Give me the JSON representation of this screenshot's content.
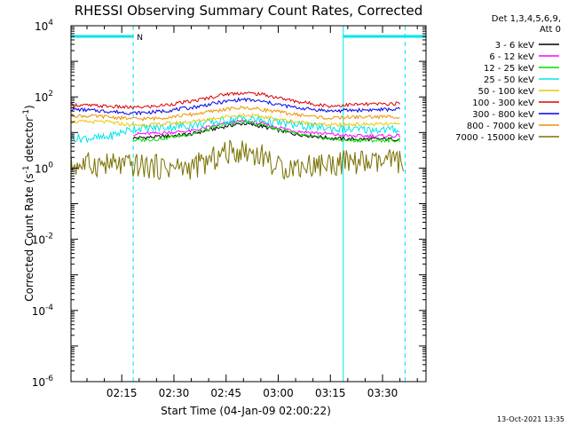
{
  "chart_data": {
    "type": "line",
    "title": "RHESSI Observing Summary Count Rates, Corrected",
    "xlabel": "Start Time (04-Jan-09 02:00:22)",
    "ylabel": "Corrected Count Rate (s⁻¹ detector⁻¹)",
    "ylabel_parts": {
      "main": "Corrected Count Rate (s",
      "exp1": "-1",
      "mid": " detector",
      "exp2": "-1",
      "end": ")"
    },
    "y_scale": "log",
    "ylim": [
      1e-06,
      10000.0
    ],
    "y_ticks": [
      {
        "value": 1e-06,
        "base": "10",
        "exp": "-6"
      },
      {
        "value": 0.0001,
        "base": "10",
        "exp": "-4"
      },
      {
        "value": 0.01,
        "base": "10",
        "exp": "-2"
      },
      {
        "value": 1,
        "base": "10",
        "exp": "0"
      },
      {
        "value": 100,
        "base": "10",
        "exp": "2"
      },
      {
        "value": 10000,
        "base": "10",
        "exp": "4"
      }
    ],
    "x_unit": "minutes after 02:00",
    "xlim": [
      0.4,
      102.5
    ],
    "x_ticks": [
      {
        "label": "02:15",
        "value": 15
      },
      {
        "label": "02:30",
        "value": 30
      },
      {
        "label": "02:45",
        "value": 45
      },
      {
        "label": "03:00",
        "value": 60
      },
      {
        "label": "03:15",
        "value": 75
      },
      {
        "label": "03:30",
        "value": 90
      }
    ],
    "legend": {
      "header": [
        "Det 1,3,4,5,6,9,",
        "Att 0"
      ],
      "position": "right",
      "entries": [
        {
          "label": "3 - 6 keV",
          "color": "#000000"
        },
        {
          "label": "6 - 12 keV",
          "color": "#ff00ff"
        },
        {
          "label": "12 - 25 keV",
          "color": "#00dd00"
        },
        {
          "label": "25 - 50 keV",
          "color": "#00e5ee"
        },
        {
          "label": "50 - 100 keV",
          "color": "#e8c800"
        },
        {
          "label": "100 - 300 keV",
          "color": "#dd0000"
        },
        {
          "label": "300 - 800 keV",
          "color": "#0000ee"
        },
        {
          "label": "800 - 7000 keV",
          "color": "#f09000"
        },
        {
          "label": "7000 - 15000 keV",
          "color": "#7a7000"
        }
      ]
    },
    "night_intervals": [
      [
        0.4,
        18.3
      ],
      [
        78.7,
        102.5
      ]
    ],
    "saa_flag": {
      "label": "N",
      "x": 18.6
    },
    "dashed_markers_x": [
      18.3,
      96.5
    ],
    "solid_markers_x": [
      78.7
    ],
    "series": [
      {
        "name": "3 - 6 keV",
        "color": "#000000",
        "x": [
          18.3,
          25,
          35,
          45,
          50,
          55,
          65,
          75,
          80,
          95
        ],
        "y": [
          7,
          7.5,
          9,
          15,
          18,
          15,
          9,
          7,
          6.5,
          6.5
        ]
      },
      {
        "name": "6 - 12 keV",
        "color": "#ff00ff",
        "x": [
          18.3,
          25,
          35,
          45,
          50,
          55,
          65,
          75,
          80,
          95
        ],
        "y": [
          9,
          9.5,
          11,
          18,
          21,
          18,
          11,
          9,
          8,
          8
        ]
      },
      {
        "name": "12 - 25 keV",
        "color": "#00dd00",
        "x": [
          18.3,
          25,
          35,
          45,
          50,
          55,
          65,
          75,
          80,
          95
        ],
        "y": [
          6,
          6.5,
          9,
          17,
          20,
          17,
          9,
          6.5,
          6,
          6
        ]
      },
      {
        "name": "25 - 50 keV",
        "color": "#00e5ee",
        "x": [
          0.4,
          10,
          18.3,
          25,
          35,
          45,
          50,
          55,
          65,
          75,
          80,
          95
        ],
        "y": [
          7,
          7,
          13,
          13.5,
          16,
          22,
          25,
          22,
          16,
          13,
          12,
          12
        ]
      },
      {
        "name": "50 - 100 keV",
        "color": "#e8c800",
        "x": [
          0.4,
          10,
          18.3,
          25,
          35,
          45,
          50,
          55,
          65,
          75,
          80,
          95
        ],
        "y": [
          20,
          20,
          16,
          17,
          20,
          28,
          31,
          28,
          20,
          16,
          17,
          17
        ]
      },
      {
        "name": "100 - 300 keV",
        "color": "#dd0000",
        "x": [
          0.4,
          10,
          18.3,
          25,
          35,
          45,
          50,
          55,
          65,
          75,
          80,
          95
        ],
        "y": [
          60,
          55,
          50,
          55,
          75,
          120,
          130,
          120,
          75,
          55,
          60,
          65
        ]
      },
      {
        "name": "300 - 800 keV",
        "color": "#0000ee",
        "x": [
          0.4,
          10,
          18.3,
          25,
          35,
          45,
          50,
          55,
          65,
          75,
          80,
          95
        ],
        "y": [
          45,
          40,
          35,
          38,
          50,
          75,
          85,
          75,
          50,
          40,
          42,
          45
        ]
      },
      {
        "name": "800 - 7000 keV",
        "color": "#f09000",
        "x": [
          0.4,
          10,
          18.3,
          25,
          35,
          45,
          50,
          55,
          65,
          75,
          80,
          95
        ],
        "y": [
          30,
          28,
          24,
          25,
          32,
          45,
          50,
          45,
          32,
          25,
          27,
          28
        ]
      },
      {
        "name": "7000 - 15000 keV",
        "color": "#7a7000",
        "x": [
          0.4,
          9,
          14,
          34,
          40,
          44,
          50,
          57,
          59,
          82,
          88,
          93,
          96
        ],
        "y": [
          1.2,
          1.3,
          1.2,
          1.0,
          1.5,
          2.6,
          3.2,
          2.0,
          1.0,
          1.5,
          1.3,
          1.6,
          1.5
        ]
      }
    ]
  },
  "footer": {
    "stamp": "13-Oct-2021 13:35"
  }
}
